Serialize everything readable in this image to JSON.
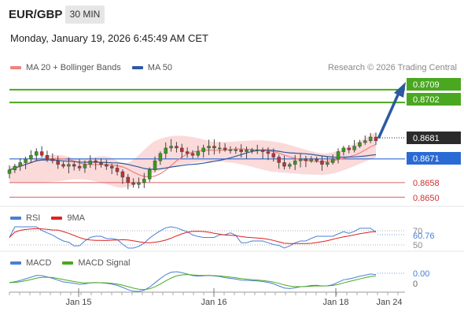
{
  "header": {
    "pair": "EUR/GBP",
    "timeframe": "30 MIN",
    "datetime": "Monday, January 19, 2026 6:45:49 AM CET",
    "credit": "Research © 2026 Trading Central"
  },
  "legends": {
    "price": [
      {
        "label": "MA 20 + Bollinger Bands",
        "color": "#f08080"
      },
      {
        "label": "MA 50",
        "color": "#2c5aa0"
      }
    ],
    "rsi": [
      {
        "label": "RSI",
        "color": "#4a7fd4"
      },
      {
        "label": "9MA",
        "color": "#e02020"
      }
    ],
    "macd": [
      {
        "label": "MACD",
        "color": "#4a7fd4"
      },
      {
        "label": "MACD Signal",
        "color": "#4aa820"
      }
    ]
  },
  "colors": {
    "up": "#3a9a1a",
    "down": "#c03030",
    "candle": "#444444",
    "band_fill": "#fbdada",
    "resistance": "#4aa820",
    "support": "#e06060",
    "pivot": "#2a6ad4",
    "current": "#222222"
  },
  "chart_data": [
    {
      "type": "candlestick",
      "name": "price",
      "x_ticks": [
        "Jan 15",
        "Jan 16",
        "Jan 18",
        "Jan 24"
      ],
      "ylim": [
        0.8645,
        0.8715
      ],
      "levels": [
        {
          "value": 0.8709,
          "label": "0.8709",
          "kind": "resistance"
        },
        {
          "value": 0.8702,
          "label": "0.8702",
          "kind": "resistance"
        },
        {
          "value": 0.8681,
          "label": "0.8681",
          "kind": "current"
        },
        {
          "value": 0.8671,
          "label": "0.8671",
          "kind": "pivot"
        },
        {
          "value": 0.8658,
          "label": "0.8658",
          "kind": "support"
        },
        {
          "value": 0.865,
          "label": "0.8650",
          "kind": "support"
        }
      ],
      "close_series": [
        0.8665,
        0.8667,
        0.8669,
        0.8671,
        0.8673,
        0.8675,
        0.8673,
        0.8671,
        0.867,
        0.8668,
        0.8667,
        0.8668,
        0.8667,
        0.8666,
        0.8668,
        0.867,
        0.8669,
        0.8668,
        0.8667,
        0.8666,
        0.8664,
        0.8661,
        0.8658,
        0.8657,
        0.8658,
        0.866,
        0.8665,
        0.867,
        0.8674,
        0.8677,
        0.8678,
        0.8677,
        0.8675,
        0.8674,
        0.8673,
        0.8675,
        0.8677,
        0.8678,
        0.8677,
        0.8677,
        0.8676,
        0.8676,
        0.8676,
        0.8675,
        0.8676,
        0.8676,
        0.8676,
        0.8675,
        0.8674,
        0.8672,
        0.8669,
        0.8667,
        0.8668,
        0.867,
        0.8671,
        0.867,
        0.8671,
        0.867,
        0.8668,
        0.8669,
        0.8671,
        0.8675,
        0.8677,
        0.8676,
        0.8678,
        0.868,
        0.8681,
        0.8683,
        0.8681
      ]
    },
    {
      "type": "line",
      "name": "RSI",
      "yticks": [
        70,
        60.76,
        50
      ],
      "ylim": [
        30,
        75
      ]
    },
    {
      "type": "line",
      "name": "MACD",
      "yticks": [
        0.0,
        0
      ],
      "ylim": [
        -0.0008,
        0.0007
      ]
    }
  ],
  "price_axis": {
    "labels": [
      "0.8709",
      "0.8702",
      "0.8681",
      "0.8671",
      "0.8658",
      "0.8650"
    ]
  },
  "rsi_axis": {
    "labels": [
      "70",
      "60.76",
      "50"
    ]
  },
  "macd_axis": {
    "labels": [
      "0.00",
      "0"
    ]
  }
}
